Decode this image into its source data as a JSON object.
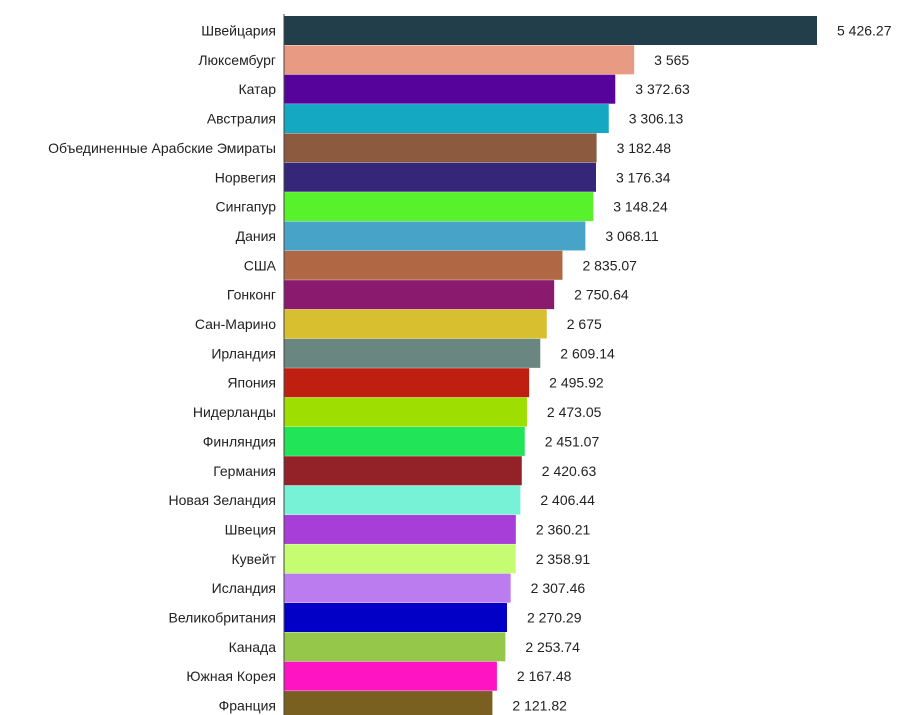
{
  "chart_data": {
    "type": "bar",
    "orientation": "horizontal",
    "categories": [
      "Швейцария",
      "Люксембург",
      "Катар",
      "Австралия",
      "Объединенные Арабские Эмираты",
      "Норвегия",
      "Сингапур",
      "Дания",
      "США",
      "Гонконг",
      "Сан-Марино",
      "Ирландия",
      "Япония",
      "Нидерланды",
      "Финляндия",
      "Германия",
      "Новая Зеландия",
      "Швеция",
      "Кувейт",
      "Исландия",
      "Великобритания",
      "Канада",
      "Южная Корея",
      "Франция"
    ],
    "values": [
      5426.27,
      3565,
      3372.63,
      3306.13,
      3182.48,
      3176.34,
      3148.24,
      3068.11,
      2835.07,
      2750.64,
      2675,
      2609.14,
      2495.92,
      2473.05,
      2451.07,
      2420.63,
      2406.44,
      2360.21,
      2358.91,
      2307.46,
      2270.29,
      2253.74,
      2167.48,
      2121.82
    ],
    "value_labels": [
      "5 426.27",
      "3 565",
      "3 372.63",
      "3 306.13",
      "3 182.48",
      "3 176.34",
      "3 148.24",
      "3 068.11",
      "2 835.07",
      "2 750.64",
      "2 675",
      "2 609.14",
      "2 495.92",
      "2 473.05",
      "2 451.07",
      "2 420.63",
      "2 406.44",
      "2 360.21",
      "2 358.91",
      "2 307.46",
      "2 270.29",
      "2 253.74",
      "2 167.48",
      "2 121.82"
    ],
    "colors": [
      "#223e4a",
      "#e89a82",
      "#55039a",
      "#15a8c2",
      "#8b5a3f",
      "#35267a",
      "#58f22c",
      "#47a4c8",
      "#b06744",
      "#8a1a6e",
      "#d8bf30",
      "#6a8680",
      "#bf1f10",
      "#9ede00",
      "#22e458",
      "#922228",
      "#78f2d6",
      "#a83ed8",
      "#c6fc72",
      "#ba7cef",
      "#0200c6",
      "#95c84a",
      "#ff14c4",
      "#7a6020"
    ],
    "xlim": [
      0,
      5426.27
    ],
    "grid": false,
    "legend": "none"
  }
}
